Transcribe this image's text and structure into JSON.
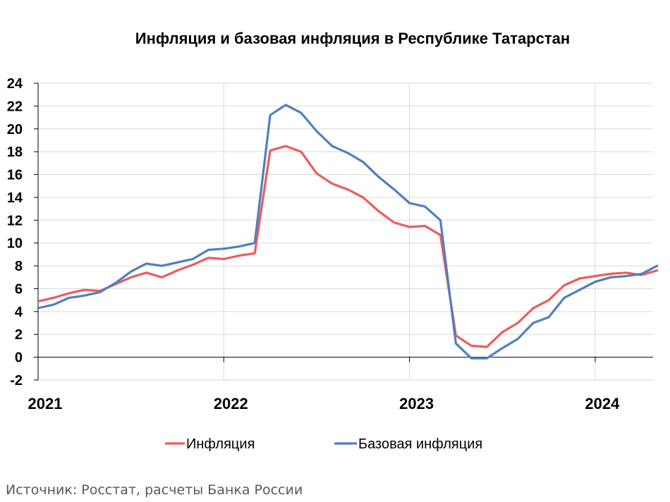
{
  "chart_data": {
    "type": "line",
    "title": "Инфляция и базовая инфляция в Республике Татарстан",
    "x_start_year": 2021,
    "x_end_year": 2024.33,
    "x_tick_labels": [
      "2021",
      "2022",
      "2023",
      "2024"
    ],
    "ylim": [
      -2,
      24
    ],
    "y_ticks": [
      24,
      22,
      20,
      18,
      16,
      14,
      12,
      10,
      8,
      6,
      4,
      2,
      0,
      -2
    ],
    "grid": true,
    "legend_position": "bottom",
    "series": [
      {
        "name": "Инфляция",
        "color": "#f05a5b",
        "values": [
          4.9,
          5.2,
          5.6,
          5.9,
          5.8,
          6.4,
          7.0,
          7.4,
          7.0,
          7.6,
          8.1,
          8.7,
          8.6,
          8.9,
          9.1,
          18.1,
          18.5,
          18.0,
          16.1,
          15.2,
          14.7,
          14.0,
          12.8,
          11.8,
          11.4,
          11.5,
          10.7,
          1.9,
          1.0,
          0.9,
          2.2,
          3.0,
          4.3,
          5.0,
          6.3,
          6.9,
          7.1,
          7.3,
          7.4,
          7.2,
          7.6
        ]
      },
      {
        "name": "Базовая инфляция",
        "color": "#4f7fc0",
        "values": [
          4.3,
          4.6,
          5.2,
          5.4,
          5.7,
          6.5,
          7.5,
          8.2,
          8.0,
          8.3,
          8.6,
          9.4,
          9.5,
          9.7,
          10.0,
          21.2,
          22.1,
          21.4,
          19.8,
          18.5,
          17.9,
          17.1,
          15.8,
          14.7,
          13.5,
          13.2,
          12.0,
          1.2,
          -0.1,
          -0.1,
          0.8,
          1.6,
          3.0,
          3.5,
          5.2,
          5.9,
          6.6,
          7.0,
          7.1,
          7.3,
          8.0
        ]
      }
    ]
  },
  "source_note": "Источник: Росстат, расчеты Банка России"
}
